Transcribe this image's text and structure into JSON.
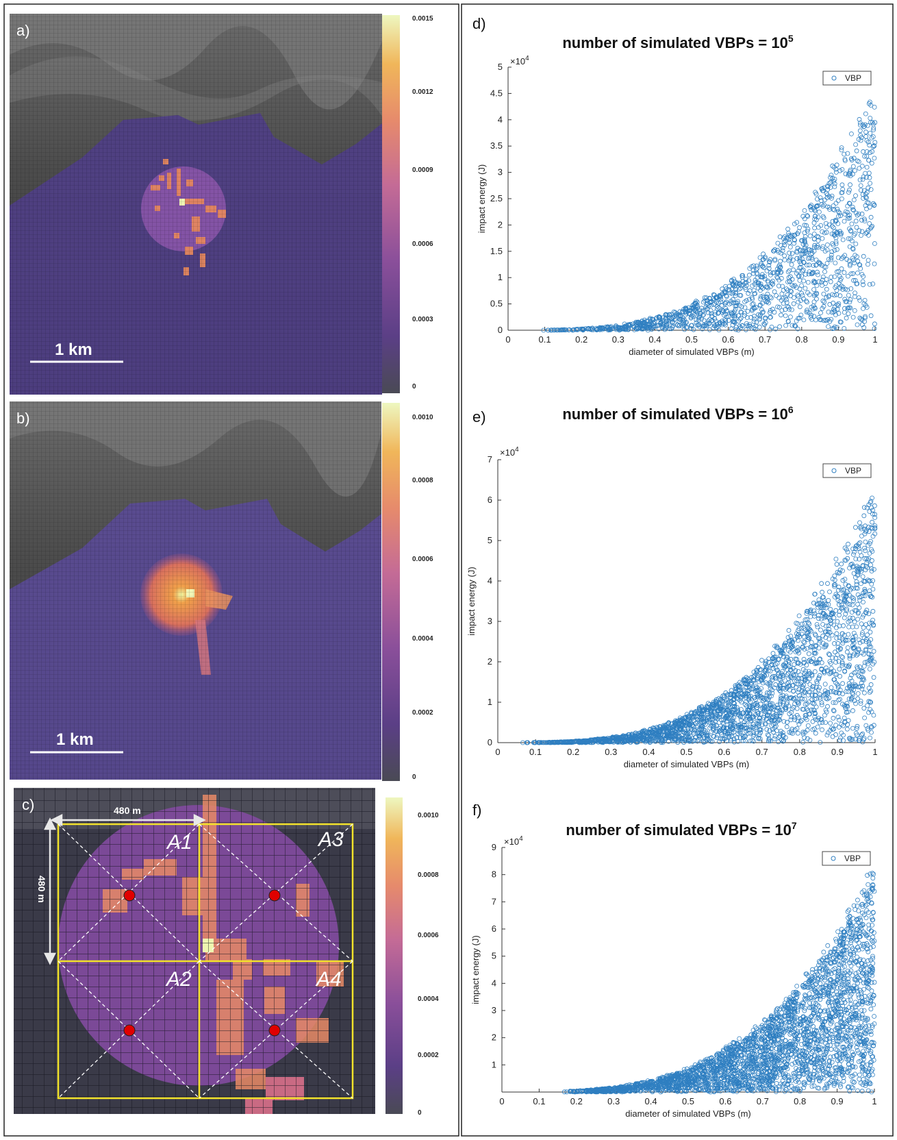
{
  "panels": {
    "a": {
      "letter": "a)",
      "scalebar_label": "1 km",
      "colorbar_ticks": [
        "0.0015",
        "0.0012",
        "0.0009",
        "0.0006",
        "0.0003",
        "0"
      ]
    },
    "b": {
      "letter": "b)",
      "scalebar_label": "1 km",
      "colorbar_ticks": [
        "0.0010",
        "0.0008",
        "0.0006",
        "0.0004",
        "0.0002",
        "0"
      ]
    },
    "c": {
      "letter": "c)",
      "width_label": "480 m",
      "height_label": "480 m",
      "areas": [
        "A1",
        "A2",
        "A3",
        "A4"
      ],
      "colorbar_ticks": [
        "0.0010",
        "0.0008",
        "0.0006",
        "0.0004",
        "0.0002",
        "0"
      ]
    }
  },
  "colors": {
    "scatter": "#2f7fc1",
    "grid_yellow": "#f2e22a",
    "marker_red": "#e00000"
  },
  "chart_data": [
    {
      "type": "scatter",
      "letter": "d)",
      "title": "number of simulated VBPs = 10",
      "title_sup": "5",
      "xlabel": "diameter of simulated VBPs (m)",
      "ylabel": "impact energy (J)",
      "xlim": [
        0,
        1
      ],
      "ylim": [
        0,
        50000
      ],
      "exponent_label": "×10",
      "exponent_sup": "4",
      "xticks": [
        "0",
        "0.1",
        "0.2",
        "0.3",
        "0.4",
        "0.5",
        "0.6",
        "0.7",
        "0.8",
        "0.9",
        "1"
      ],
      "yticks": [
        "0",
        "0.5",
        "1",
        "1.5",
        "2",
        "2.5",
        "3",
        "3.5",
        "4",
        "4.5",
        "5"
      ],
      "legend": "VBP",
      "legend_position": "top-right",
      "n_points": 1400,
      "envelope": {
        "d_min": 0.08,
        "peak_energy": 46000
      }
    },
    {
      "type": "scatter",
      "letter": "e)",
      "title": "number of simulated VBPs = 10",
      "title_sup": "6",
      "xlabel": "diameter of simulated VBPs (m)",
      "ylabel": "impact energy (J)",
      "xlim": [
        0,
        1
      ],
      "ylim": [
        0,
        70000
      ],
      "exponent_label": "×10",
      "exponent_sup": "4",
      "xticks": [
        "0",
        "0.1",
        "0.2",
        "0.3",
        "0.4",
        "0.5",
        "0.6",
        "0.7",
        "0.8",
        "0.9",
        "1"
      ],
      "yticks": [
        "0",
        "1",
        "2",
        "3",
        "4",
        "5",
        "6",
        "7"
      ],
      "legend": "VBP",
      "legend_position": "top-right",
      "n_points": 2400,
      "envelope": {
        "d_min": 0.06,
        "peak_energy": 63000
      }
    },
    {
      "type": "scatter",
      "letter": "f)",
      "title": "number of simulated VBPs = 10",
      "title_sup": "7",
      "xlabel": "diameter of simulated VBPs (m)",
      "ylabel": "impact energy (J)",
      "xlim": [
        0,
        1
      ],
      "ylim": [
        0,
        90000
      ],
      "exponent_label": "×10",
      "exponent_sup": "4",
      "xticks": [
        "0",
        "0.1",
        "0.2",
        "0.3",
        "0.4",
        "0.5",
        "0.6",
        "0.7",
        "0.8",
        "0.9",
        "1"
      ],
      "yticks": [
        "1",
        "2",
        "3",
        "4",
        "5",
        "6",
        "7",
        "8",
        "9"
      ],
      "legend": "VBP",
      "legend_position": "top-right",
      "n_points": 3000,
      "envelope": {
        "d_min": 0.16,
        "peak_energy": 82000
      }
    }
  ]
}
